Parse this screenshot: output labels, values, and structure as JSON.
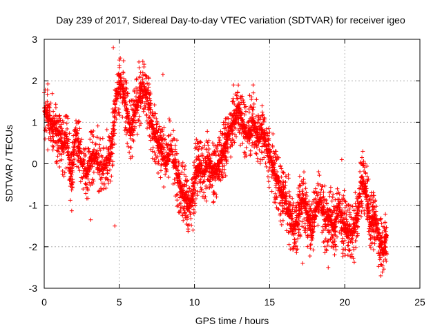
{
  "chart_data": {
    "type": "scatter",
    "title": "Day 239 of 2017, Sidereal Day-to-day VTEC variation (SDTVAR) for receiver igeo",
    "xlabel": "GPS time / hours",
    "ylabel": "SDTVAR / TECUs",
    "xlim": [
      0,
      25
    ],
    "ylim": [
      -3,
      3
    ],
    "x_ticks": [
      0,
      5,
      10,
      15,
      20,
      25
    ],
    "y_ticks": [
      -3,
      -2,
      -1,
      0,
      1,
      2,
      3
    ],
    "x_tick_labels": [
      "0",
      "5",
      "10",
      "15",
      "20",
      "25"
    ],
    "y_tick_labels": [
      "-3",
      "-2",
      "-1",
      "0",
      "1",
      "2",
      "3"
    ],
    "grid": true,
    "marker": "+",
    "color": "#ff0000",
    "trace_anchors": [
      [
        0.0,
        1.3
      ],
      [
        0.3,
        1.1
      ],
      [
        0.6,
        0.9
      ],
      [
        0.9,
        0.8
      ],
      [
        1.2,
        0.4
      ],
      [
        1.5,
        0.6
      ],
      [
        1.8,
        -0.4
      ],
      [
        2.1,
        0.8
      ],
      [
        2.4,
        0.3
      ],
      [
        2.8,
        -0.3
      ],
      [
        3.1,
        0.1
      ],
      [
        3.4,
        0.2
      ],
      [
        3.8,
        -0.2
      ],
      [
        4.2,
        0.1
      ],
      [
        4.5,
        0.4
      ],
      [
        4.8,
        1.6
      ],
      [
        5.1,
        2.0
      ],
      [
        5.4,
        1.5
      ],
      [
        5.7,
        0.8
      ],
      [
        6.0,
        1.2
      ],
      [
        6.3,
        1.6
      ],
      [
        6.6,
        1.8
      ],
      [
        6.9,
        1.6
      ],
      [
        7.2,
        0.8
      ],
      [
        7.5,
        0.6
      ],
      [
        7.8,
        0.3
      ],
      [
        8.1,
        0.0
      ],
      [
        8.4,
        0.4
      ],
      [
        8.8,
        -0.2
      ],
      [
        9.1,
        -0.6
      ],
      [
        9.4,
        -0.8
      ],
      [
        9.7,
        -1.1
      ],
      [
        10.0,
        -0.4
      ],
      [
        10.3,
        0.0
      ],
      [
        10.6,
        -0.3
      ],
      [
        10.9,
        0.1
      ],
      [
        11.2,
        -0.2
      ],
      [
        11.5,
        -0.1
      ],
      [
        11.8,
        0.2
      ],
      [
        12.1,
        0.5
      ],
      [
        12.4,
        0.9
      ],
      [
        12.7,
        1.2
      ],
      [
        13.0,
        1.3
      ],
      [
        13.3,
        0.8
      ],
      [
        13.6,
        0.7
      ],
      [
        13.9,
        1.0
      ],
      [
        14.2,
        0.7
      ],
      [
        14.5,
        0.8
      ],
      [
        14.8,
        0.4
      ],
      [
        15.1,
        0.1
      ],
      [
        15.4,
        -0.3
      ],
      [
        15.7,
        -0.6
      ],
      [
        16.0,
        -0.8
      ],
      [
        16.3,
        -1.2
      ],
      [
        16.6,
        -1.6
      ],
      [
        16.9,
        -1.3
      ],
      [
        17.2,
        -0.8
      ],
      [
        17.5,
        -1.2
      ],
      [
        17.8,
        -1.7
      ],
      [
        18.1,
        -1.0
      ],
      [
        18.4,
        -0.9
      ],
      [
        18.7,
        -1.4
      ],
      [
        19.0,
        -1.2
      ],
      [
        19.3,
        -1.6
      ],
      [
        19.6,
        -1.0
      ],
      [
        19.9,
        -1.5
      ],
      [
        20.2,
        -1.6
      ],
      [
        20.5,
        -1.7
      ],
      [
        20.8,
        -1.3
      ],
      [
        21.1,
        -0.4
      ],
      [
        21.4,
        -0.6
      ],
      [
        21.7,
        -1.4
      ],
      [
        22.0,
        -1.3
      ],
      [
        22.3,
        -1.8
      ],
      [
        22.6,
        -2.0
      ],
      [
        22.8,
        -1.7
      ]
    ],
    "outlier_points": [
      [
        4.6,
        2.8
      ],
      [
        5.0,
        2.5
      ],
      [
        4.7,
        -1.5
      ],
      [
        3.1,
        -1.35
      ],
      [
        7.9,
        2.15
      ],
      [
        8.6,
        0.8
      ],
      [
        9.9,
        -1.6
      ],
      [
        12.6,
        1.9
      ],
      [
        13.9,
        1.9
      ],
      [
        16.6,
        -2.0
      ],
      [
        17.2,
        -2.4
      ],
      [
        18.9,
        -2.5
      ],
      [
        22.4,
        -2.7
      ],
      [
        21.2,
        0.3
      ],
      [
        19.8,
        0.1
      ],
      [
        17.0,
        -0.3
      ],
      [
        0.2,
        1.5
      ],
      [
        10.8,
        0.55
      ]
    ]
  }
}
